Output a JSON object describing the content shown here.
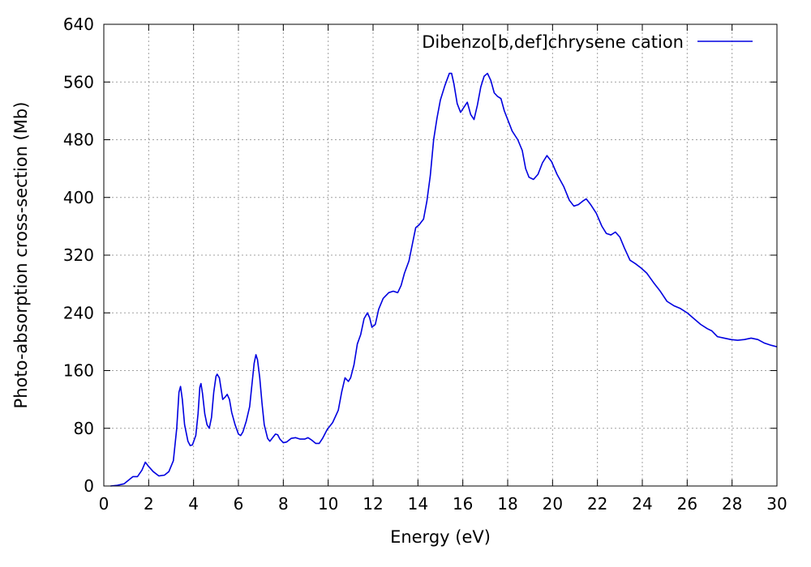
{
  "chart_data": {
    "type": "line",
    "title": "",
    "xlabel": "Energy (eV)",
    "ylabel": "Photo-absorption cross-section (Mb)",
    "xlim": [
      0,
      30
    ],
    "ylim": [
      0,
      640
    ],
    "xticks": [
      0,
      2,
      4,
      6,
      8,
      10,
      12,
      14,
      16,
      18,
      20,
      22,
      24,
      26,
      28,
      30
    ],
    "yticks": [
      0,
      80,
      160,
      240,
      320,
      400,
      480,
      560,
      640
    ],
    "grid": true,
    "legend_position": "top-right",
    "series": [
      {
        "name": "Dibenzo[b,def]chrysene cation",
        "color": "#0000e0",
        "points": [
          [
            0.3,
            0
          ],
          [
            0.6,
            1
          ],
          [
            0.9,
            3
          ],
          [
            1.1,
            8
          ],
          [
            1.3,
            13
          ],
          [
            1.5,
            13
          ],
          [
            1.7,
            22
          ],
          [
            1.85,
            33
          ],
          [
            2.0,
            27
          ],
          [
            2.2,
            20
          ],
          [
            2.45,
            14
          ],
          [
            2.7,
            15
          ],
          [
            2.9,
            20
          ],
          [
            3.1,
            35
          ],
          [
            3.25,
            80
          ],
          [
            3.35,
            130
          ],
          [
            3.42,
            138
          ],
          [
            3.5,
            120
          ],
          [
            3.6,
            85
          ],
          [
            3.75,
            62
          ],
          [
            3.85,
            56
          ],
          [
            3.95,
            57
          ],
          [
            4.1,
            70
          ],
          [
            4.2,
            100
          ],
          [
            4.28,
            137
          ],
          [
            4.33,
            142
          ],
          [
            4.4,
            128
          ],
          [
            4.5,
            100
          ],
          [
            4.6,
            85
          ],
          [
            4.7,
            80
          ],
          [
            4.8,
            95
          ],
          [
            4.9,
            130
          ],
          [
            5.0,
            152
          ],
          [
            5.05,
            155
          ],
          [
            5.15,
            150
          ],
          [
            5.3,
            120
          ],
          [
            5.4,
            123
          ],
          [
            5.5,
            127
          ],
          [
            5.6,
            120
          ],
          [
            5.7,
            102
          ],
          [
            5.85,
            85
          ],
          [
            6.0,
            72
          ],
          [
            6.1,
            70
          ],
          [
            6.2,
            75
          ],
          [
            6.35,
            90
          ],
          [
            6.5,
            110
          ],
          [
            6.6,
            140
          ],
          [
            6.7,
            170
          ],
          [
            6.78,
            182
          ],
          [
            6.85,
            175
          ],
          [
            6.95,
            150
          ],
          [
            7.05,
            115
          ],
          [
            7.15,
            85
          ],
          [
            7.3,
            66
          ],
          [
            7.4,
            62
          ],
          [
            7.5,
            66
          ],
          [
            7.65,
            72
          ],
          [
            7.75,
            71
          ],
          [
            7.85,
            65
          ],
          [
            8.0,
            60
          ],
          [
            8.15,
            61
          ],
          [
            8.35,
            66
          ],
          [
            8.55,
            67
          ],
          [
            8.75,
            65
          ],
          [
            8.95,
            65
          ],
          [
            9.1,
            67
          ],
          [
            9.25,
            64
          ],
          [
            9.45,
            59
          ],
          [
            9.6,
            59
          ],
          [
            9.75,
            66
          ],
          [
            9.95,
            78
          ],
          [
            10.2,
            88
          ],
          [
            10.45,
            105
          ],
          [
            10.6,
            130
          ],
          [
            10.75,
            150
          ],
          [
            10.9,
            145
          ],
          [
            11.0,
            150
          ],
          [
            11.15,
            168
          ],
          [
            11.3,
            197
          ],
          [
            11.45,
            210
          ],
          [
            11.6,
            232
          ],
          [
            11.75,
            240
          ],
          [
            11.85,
            233
          ],
          [
            11.95,
            220
          ],
          [
            12.1,
            224
          ],
          [
            12.25,
            245
          ],
          [
            12.45,
            260
          ],
          [
            12.7,
            268
          ],
          [
            12.9,
            270
          ],
          [
            13.1,
            268
          ],
          [
            13.25,
            278
          ],
          [
            13.4,
            295
          ],
          [
            13.6,
            312
          ],
          [
            13.75,
            335
          ],
          [
            13.9,
            358
          ],
          [
            14.05,
            362
          ],
          [
            14.25,
            370
          ],
          [
            14.4,
            395
          ],
          [
            14.55,
            430
          ],
          [
            14.7,
            480
          ],
          [
            14.85,
            510
          ],
          [
            15.0,
            535
          ],
          [
            15.2,
            555
          ],
          [
            15.4,
            572
          ],
          [
            15.5,
            572
          ],
          [
            15.6,
            558
          ],
          [
            15.75,
            530
          ],
          [
            15.9,
            518
          ],
          [
            16.05,
            525
          ],
          [
            16.2,
            532
          ],
          [
            16.35,
            515
          ],
          [
            16.5,
            508
          ],
          [
            16.65,
            528
          ],
          [
            16.8,
            553
          ],
          [
            16.95,
            568
          ],
          [
            17.1,
            572
          ],
          [
            17.25,
            562
          ],
          [
            17.4,
            545
          ],
          [
            17.55,
            540
          ],
          [
            17.7,
            537
          ],
          [
            17.85,
            520
          ],
          [
            18.0,
            508
          ],
          [
            18.2,
            492
          ],
          [
            18.45,
            480
          ],
          [
            18.65,
            465
          ],
          [
            18.8,
            440
          ],
          [
            18.95,
            428
          ],
          [
            19.15,
            425
          ],
          [
            19.35,
            432
          ],
          [
            19.55,
            448
          ],
          [
            19.75,
            458
          ],
          [
            19.95,
            450
          ],
          [
            20.2,
            432
          ],
          [
            20.5,
            415
          ],
          [
            20.75,
            396
          ],
          [
            20.95,
            388
          ],
          [
            21.15,
            390
          ],
          [
            21.35,
            395
          ],
          [
            21.5,
            398
          ],
          [
            21.7,
            390
          ],
          [
            21.95,
            378
          ],
          [
            22.2,
            360
          ],
          [
            22.4,
            350
          ],
          [
            22.6,
            348
          ],
          [
            22.8,
            352
          ],
          [
            23.0,
            345
          ],
          [
            23.2,
            330
          ],
          [
            23.45,
            313
          ],
          [
            23.7,
            308
          ],
          [
            23.95,
            302
          ],
          [
            24.2,
            295
          ],
          [
            24.5,
            282
          ],
          [
            24.8,
            270
          ],
          [
            25.1,
            256
          ],
          [
            25.4,
            250
          ],
          [
            25.7,
            246
          ],
          [
            26.0,
            240
          ],
          [
            26.3,
            232
          ],
          [
            26.6,
            224
          ],
          [
            26.9,
            218
          ],
          [
            27.1,
            215
          ],
          [
            27.35,
            207
          ],
          [
            27.65,
            205
          ],
          [
            27.95,
            203
          ],
          [
            28.25,
            202
          ],
          [
            28.55,
            203
          ],
          [
            28.85,
            205
          ],
          [
            29.15,
            203
          ],
          [
            29.45,
            198
          ],
          [
            29.75,
            195
          ],
          [
            30.0,
            193
          ]
        ]
      }
    ]
  }
}
